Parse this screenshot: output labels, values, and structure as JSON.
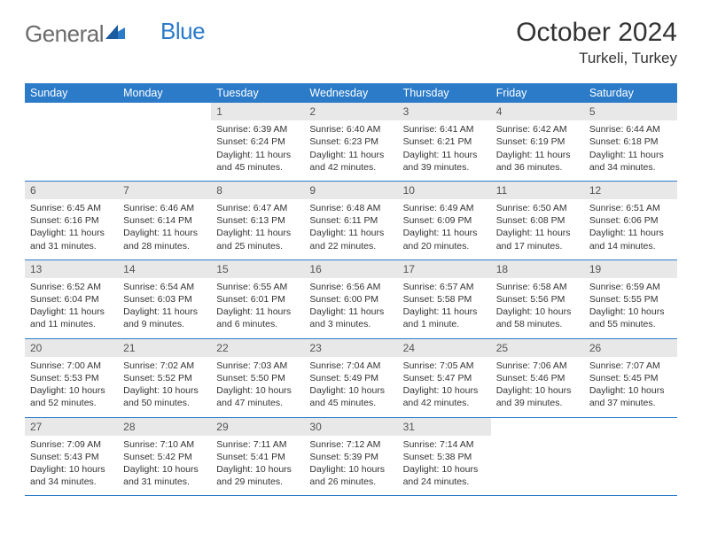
{
  "logo": {
    "text1": "General",
    "text2": "Blue"
  },
  "title": "October 2024",
  "location": "Turkeli, Turkey",
  "colors": {
    "header_bg": "#2b7bc9",
    "header_text": "#ffffff",
    "daynum_bg": "#e8e8e8",
    "border": "#2b7bc9",
    "body_text": "#333333"
  },
  "weekdays": [
    "Sunday",
    "Monday",
    "Tuesday",
    "Wednesday",
    "Thursday",
    "Friday",
    "Saturday"
  ],
  "weeks": [
    [
      {
        "n": "",
        "sr": "",
        "ss": "",
        "dl": ""
      },
      {
        "n": "",
        "sr": "",
        "ss": "",
        "dl": ""
      },
      {
        "n": "1",
        "sr": "Sunrise: 6:39 AM",
        "ss": "Sunset: 6:24 PM",
        "dl": "Daylight: 11 hours and 45 minutes."
      },
      {
        "n": "2",
        "sr": "Sunrise: 6:40 AM",
        "ss": "Sunset: 6:23 PM",
        "dl": "Daylight: 11 hours and 42 minutes."
      },
      {
        "n": "3",
        "sr": "Sunrise: 6:41 AM",
        "ss": "Sunset: 6:21 PM",
        "dl": "Daylight: 11 hours and 39 minutes."
      },
      {
        "n": "4",
        "sr": "Sunrise: 6:42 AM",
        "ss": "Sunset: 6:19 PM",
        "dl": "Daylight: 11 hours and 36 minutes."
      },
      {
        "n": "5",
        "sr": "Sunrise: 6:44 AM",
        "ss": "Sunset: 6:18 PM",
        "dl": "Daylight: 11 hours and 34 minutes."
      }
    ],
    [
      {
        "n": "6",
        "sr": "Sunrise: 6:45 AM",
        "ss": "Sunset: 6:16 PM",
        "dl": "Daylight: 11 hours and 31 minutes."
      },
      {
        "n": "7",
        "sr": "Sunrise: 6:46 AM",
        "ss": "Sunset: 6:14 PM",
        "dl": "Daylight: 11 hours and 28 minutes."
      },
      {
        "n": "8",
        "sr": "Sunrise: 6:47 AM",
        "ss": "Sunset: 6:13 PM",
        "dl": "Daylight: 11 hours and 25 minutes."
      },
      {
        "n": "9",
        "sr": "Sunrise: 6:48 AM",
        "ss": "Sunset: 6:11 PM",
        "dl": "Daylight: 11 hours and 22 minutes."
      },
      {
        "n": "10",
        "sr": "Sunrise: 6:49 AM",
        "ss": "Sunset: 6:09 PM",
        "dl": "Daylight: 11 hours and 20 minutes."
      },
      {
        "n": "11",
        "sr": "Sunrise: 6:50 AM",
        "ss": "Sunset: 6:08 PM",
        "dl": "Daylight: 11 hours and 17 minutes."
      },
      {
        "n": "12",
        "sr": "Sunrise: 6:51 AM",
        "ss": "Sunset: 6:06 PM",
        "dl": "Daylight: 11 hours and 14 minutes."
      }
    ],
    [
      {
        "n": "13",
        "sr": "Sunrise: 6:52 AM",
        "ss": "Sunset: 6:04 PM",
        "dl": "Daylight: 11 hours and 11 minutes."
      },
      {
        "n": "14",
        "sr": "Sunrise: 6:54 AM",
        "ss": "Sunset: 6:03 PM",
        "dl": "Daylight: 11 hours and 9 minutes."
      },
      {
        "n": "15",
        "sr": "Sunrise: 6:55 AM",
        "ss": "Sunset: 6:01 PM",
        "dl": "Daylight: 11 hours and 6 minutes."
      },
      {
        "n": "16",
        "sr": "Sunrise: 6:56 AM",
        "ss": "Sunset: 6:00 PM",
        "dl": "Daylight: 11 hours and 3 minutes."
      },
      {
        "n": "17",
        "sr": "Sunrise: 6:57 AM",
        "ss": "Sunset: 5:58 PM",
        "dl": "Daylight: 11 hours and 1 minute."
      },
      {
        "n": "18",
        "sr": "Sunrise: 6:58 AM",
        "ss": "Sunset: 5:56 PM",
        "dl": "Daylight: 10 hours and 58 minutes."
      },
      {
        "n": "19",
        "sr": "Sunrise: 6:59 AM",
        "ss": "Sunset: 5:55 PM",
        "dl": "Daylight: 10 hours and 55 minutes."
      }
    ],
    [
      {
        "n": "20",
        "sr": "Sunrise: 7:00 AM",
        "ss": "Sunset: 5:53 PM",
        "dl": "Daylight: 10 hours and 52 minutes."
      },
      {
        "n": "21",
        "sr": "Sunrise: 7:02 AM",
        "ss": "Sunset: 5:52 PM",
        "dl": "Daylight: 10 hours and 50 minutes."
      },
      {
        "n": "22",
        "sr": "Sunrise: 7:03 AM",
        "ss": "Sunset: 5:50 PM",
        "dl": "Daylight: 10 hours and 47 minutes."
      },
      {
        "n": "23",
        "sr": "Sunrise: 7:04 AM",
        "ss": "Sunset: 5:49 PM",
        "dl": "Daylight: 10 hours and 45 minutes."
      },
      {
        "n": "24",
        "sr": "Sunrise: 7:05 AM",
        "ss": "Sunset: 5:47 PM",
        "dl": "Daylight: 10 hours and 42 minutes."
      },
      {
        "n": "25",
        "sr": "Sunrise: 7:06 AM",
        "ss": "Sunset: 5:46 PM",
        "dl": "Daylight: 10 hours and 39 minutes."
      },
      {
        "n": "26",
        "sr": "Sunrise: 7:07 AM",
        "ss": "Sunset: 5:45 PM",
        "dl": "Daylight: 10 hours and 37 minutes."
      }
    ],
    [
      {
        "n": "27",
        "sr": "Sunrise: 7:09 AM",
        "ss": "Sunset: 5:43 PM",
        "dl": "Daylight: 10 hours and 34 minutes."
      },
      {
        "n": "28",
        "sr": "Sunrise: 7:10 AM",
        "ss": "Sunset: 5:42 PM",
        "dl": "Daylight: 10 hours and 31 minutes."
      },
      {
        "n": "29",
        "sr": "Sunrise: 7:11 AM",
        "ss": "Sunset: 5:41 PM",
        "dl": "Daylight: 10 hours and 29 minutes."
      },
      {
        "n": "30",
        "sr": "Sunrise: 7:12 AM",
        "ss": "Sunset: 5:39 PM",
        "dl": "Daylight: 10 hours and 26 minutes."
      },
      {
        "n": "31",
        "sr": "Sunrise: 7:14 AM",
        "ss": "Sunset: 5:38 PM",
        "dl": "Daylight: 10 hours and 24 minutes."
      },
      {
        "n": "",
        "sr": "",
        "ss": "",
        "dl": ""
      },
      {
        "n": "",
        "sr": "",
        "ss": "",
        "dl": ""
      }
    ]
  ]
}
